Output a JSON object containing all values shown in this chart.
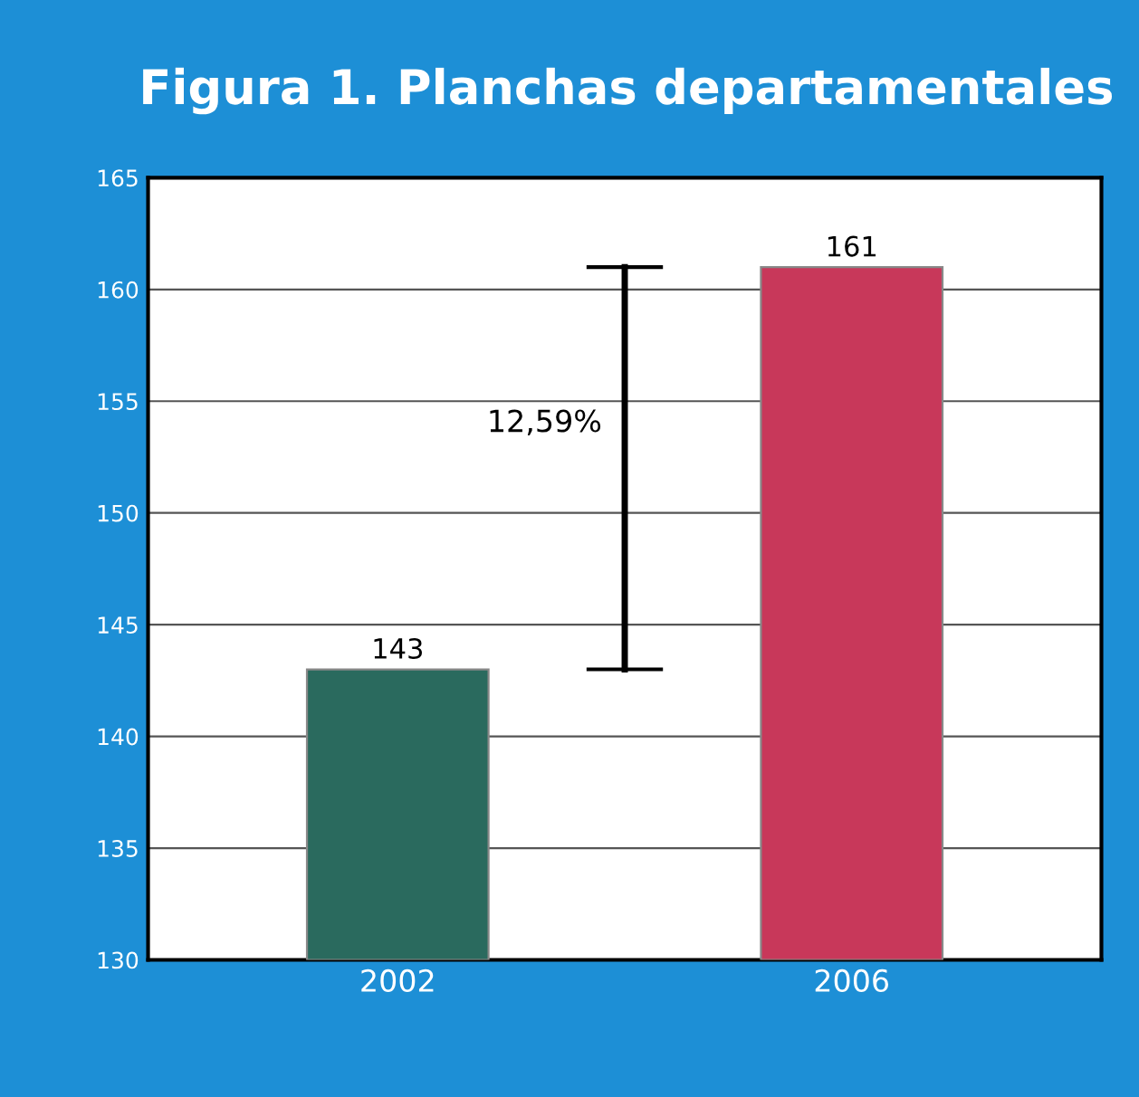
{
  "chart_data": {
    "type": "bar",
    "title": "Figura 1. Planchas departamentales",
    "categories": [
      "2002",
      "2006"
    ],
    "values": [
      143,
      161
    ],
    "colors": [
      "#2a6a5e",
      "#c8385a"
    ],
    "data_labels": true,
    "ylim": [
      130,
      165
    ],
    "yticks": [
      130,
      135,
      140,
      145,
      150,
      155,
      160,
      165
    ],
    "grid": "y",
    "annotations": [
      "12,59%"
    ]
  }
}
